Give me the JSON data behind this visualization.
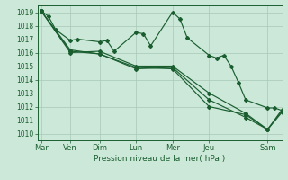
{
  "background_color": "#cce8d8",
  "grid_color": "#a8c8b8",
  "line_color": "#1a5e30",
  "marker_color": "#1a5e30",
  "xlabel": "Pression niveau de la mer( hPa )",
  "ylim": [
    1009.5,
    1019.5
  ],
  "yticks": [
    1010,
    1011,
    1012,
    1013,
    1014,
    1015,
    1016,
    1017,
    1018,
    1019
  ],
  "x_day_labels": [
    "Mar",
    "Ven",
    "Dim",
    "Lun",
    "Mer",
    "Jeu",
    "Sam"
  ],
  "x_day_positions": [
    0,
    4,
    8,
    13,
    18,
    23,
    31
  ],
  "xlim": [
    -0.5,
    33
  ],
  "series1_x": [
    0,
    1,
    2,
    4,
    5,
    8,
    9,
    10,
    13,
    14,
    15,
    18,
    19,
    20,
    23,
    24,
    25,
    26,
    27,
    28,
    31,
    32,
    33
  ],
  "series1_y": [
    1019.1,
    1018.7,
    1017.7,
    1016.9,
    1017.0,
    1016.8,
    1016.9,
    1016.1,
    1017.5,
    1017.4,
    1016.5,
    1019.0,
    1018.5,
    1017.1,
    1015.8,
    1015.6,
    1015.8,
    1015.0,
    1013.8,
    1012.5,
    1011.9,
    1011.9,
    1011.7
  ],
  "series2_x": [
    0,
    4,
    8,
    13,
    18,
    23,
    28,
    31,
    33
  ],
  "series2_y": [
    1019.1,
    1016.0,
    1016.1,
    1015.0,
    1015.0,
    1013.0,
    1011.5,
    1010.3,
    1011.7
  ],
  "series3_x": [
    0,
    4,
    8,
    13,
    18,
    23,
    28,
    31,
    33
  ],
  "series3_y": [
    1019.1,
    1016.1,
    1015.9,
    1014.8,
    1014.9,
    1012.5,
    1011.2,
    1010.3,
    1011.6
  ],
  "series4_x": [
    0,
    4,
    8,
    13,
    18,
    23,
    28,
    31,
    33
  ],
  "series4_y": [
    1019.1,
    1016.2,
    1015.9,
    1014.9,
    1014.8,
    1012.0,
    1011.4,
    1010.3,
    1011.8
  ],
  "ytick_fontsize": 5.5,
  "xtick_fontsize": 6.0,
  "xlabel_fontsize": 6.5
}
